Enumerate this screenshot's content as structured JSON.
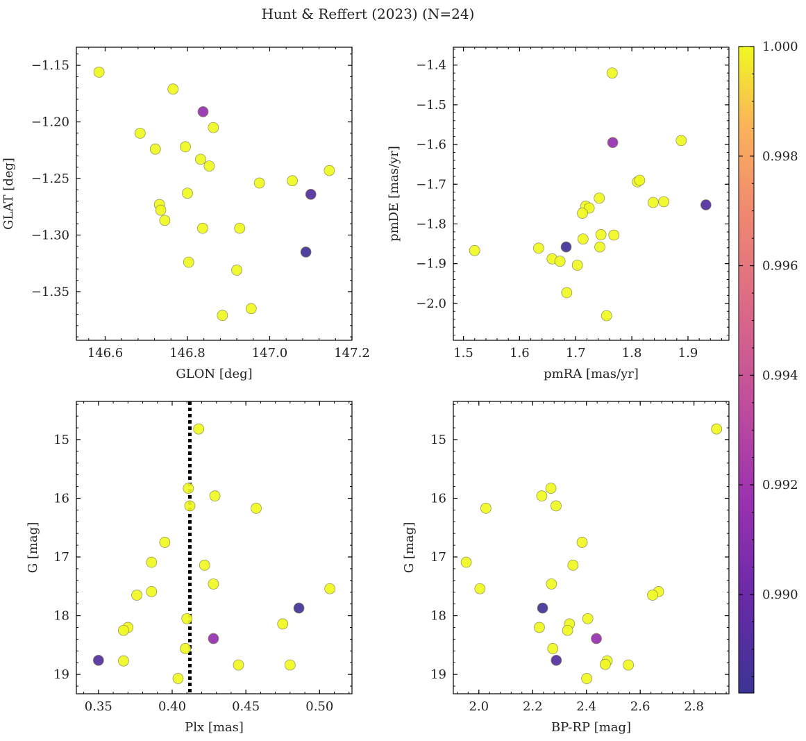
{
  "figure": {
    "title": "Hunt & Reffert (2023) (N=24)"
  },
  "colorbar": {
    "min": 0.9882,
    "max": 1.0,
    "ticks": [
      "0.990",
      "0.992",
      "0.994",
      "0.996",
      "0.998",
      "1.000"
    ],
    "tick_values": [
      0.99,
      0.992,
      0.994,
      0.996,
      0.998,
      1.0
    ],
    "colormap": "plasma"
  },
  "colors": {
    "member_high": "#f0f921",
    "member_mid": "#8c2bb4",
    "member_low": "#3b3494"
  },
  "chart_data": [
    {
      "type": "scatter",
      "xlabel": "GLON [deg]",
      "ylabel": "GLAT [deg]",
      "xlim": [
        146.53,
        147.2
      ],
      "ylim": [
        -1.393,
        -1.134
      ],
      "y_inverted": false,
      "xticks": [
        146.6,
        146.8,
        147.0,
        147.2
      ],
      "xtick_labels": [
        "146.6",
        "146.8",
        "147.0",
        "147.2"
      ],
      "yticks": [
        -1.15,
        -1.2,
        -1.25,
        -1.3,
        -1.35
      ],
      "ytick_labels": [
        "−1.15",
        "−1.20",
        "−1.25",
        "−1.30",
        "−1.35"
      ],
      "points": [
        {
          "x": 146.585,
          "y": -1.156,
          "c": 1.0
        },
        {
          "x": 146.765,
          "y": -1.171,
          "c": 1.0
        },
        {
          "x": 146.838,
          "y": -1.191,
          "c": 0.9915
        },
        {
          "x": 146.685,
          "y": -1.21,
          "c": 1.0
        },
        {
          "x": 146.863,
          "y": -1.205,
          "c": 1.0
        },
        {
          "x": 146.722,
          "y": -1.224,
          "c": 1.0
        },
        {
          "x": 146.795,
          "y": -1.222,
          "c": 1.0
        },
        {
          "x": 146.832,
          "y": -1.233,
          "c": 1.0
        },
        {
          "x": 146.853,
          "y": -1.239,
          "c": 1.0
        },
        {
          "x": 147.145,
          "y": -1.243,
          "c": 1.0
        },
        {
          "x": 146.975,
          "y": -1.254,
          "c": 1.0
        },
        {
          "x": 147.055,
          "y": -1.252,
          "c": 1.0
        },
        {
          "x": 146.8,
          "y": -1.263,
          "c": 1.0
        },
        {
          "x": 147.1,
          "y": -1.264,
          "c": 0.989
        },
        {
          "x": 146.732,
          "y": -1.273,
          "c": 1.0
        },
        {
          "x": 146.735,
          "y": -1.278,
          "c": 1.0
        },
        {
          "x": 146.745,
          "y": -1.287,
          "c": 1.0
        },
        {
          "x": 146.837,
          "y": -1.294,
          "c": 1.0
        },
        {
          "x": 146.927,
          "y": -1.294,
          "c": 1.0
        },
        {
          "x": 147.088,
          "y": -1.315,
          "c": 0.9885
        },
        {
          "x": 146.803,
          "y": -1.324,
          "c": 1.0
        },
        {
          "x": 146.92,
          "y": -1.331,
          "c": 1.0
        },
        {
          "x": 146.955,
          "y": -1.365,
          "c": 1.0
        },
        {
          "x": 146.885,
          "y": -1.371,
          "c": 1.0
        }
      ]
    },
    {
      "type": "scatter",
      "xlabel": "pmRA [mas/yr]",
      "ylabel": "pmDE [mas/yr]",
      "xlim": [
        1.482,
        1.973
      ],
      "ylim": [
        -2.093,
        -1.355
      ],
      "y_inverted": false,
      "xticks": [
        1.5,
        1.6,
        1.7,
        1.8,
        1.9
      ],
      "xtick_labels": [
        "1.5",
        "1.6",
        "1.7",
        "1.8",
        "1.9"
      ],
      "yticks": [
        -1.4,
        -1.5,
        -1.6,
        -1.7,
        -1.8,
        -1.9,
        -2.0
      ],
      "ytick_labels": [
        "−1.4",
        "−1.5",
        "−1.6",
        "−1.7",
        "−1.8",
        "−1.9",
        "−2.0"
      ],
      "points": [
        {
          "x": 1.765,
          "y": -1.42,
          "c": 1.0
        },
        {
          "x": 1.766,
          "y": -1.595,
          "c": 0.9915
        },
        {
          "x": 1.888,
          "y": -1.59,
          "c": 1.0
        },
        {
          "x": 1.81,
          "y": -1.694,
          "c": 1.0
        },
        {
          "x": 1.814,
          "y": -1.69,
          "c": 1.0
        },
        {
          "x": 1.742,
          "y": -1.735,
          "c": 1.0
        },
        {
          "x": 1.838,
          "y": -1.746,
          "c": 1.0
        },
        {
          "x": 1.857,
          "y": -1.744,
          "c": 1.0
        },
        {
          "x": 1.932,
          "y": -1.752,
          "c": 0.989
        },
        {
          "x": 1.718,
          "y": -1.755,
          "c": 1.0
        },
        {
          "x": 1.724,
          "y": -1.76,
          "c": 1.0
        },
        {
          "x": 1.712,
          "y": -1.773,
          "c": 1.0
        },
        {
          "x": 1.745,
          "y": -1.827,
          "c": 1.0
        },
        {
          "x": 1.768,
          "y": -1.828,
          "c": 1.0
        },
        {
          "x": 1.713,
          "y": -1.838,
          "c": 1.0
        },
        {
          "x": 1.743,
          "y": -1.858,
          "c": 1.0
        },
        {
          "x": 1.683,
          "y": -1.858,
          "c": 0.9885
        },
        {
          "x": 1.634,
          "y": -1.861,
          "c": 1.0
        },
        {
          "x": 1.52,
          "y": -1.867,
          "c": 1.0
        },
        {
          "x": 1.658,
          "y": -1.888,
          "c": 1.0
        },
        {
          "x": 1.672,
          "y": -1.894,
          "c": 1.0
        },
        {
          "x": 1.703,
          "y": -1.904,
          "c": 1.0
        },
        {
          "x": 1.684,
          "y": -1.973,
          "c": 1.0
        },
        {
          "x": 1.755,
          "y": -2.031,
          "c": 1.0
        }
      ]
    },
    {
      "type": "scatter",
      "xlabel": "Plx [mas]",
      "ylabel": "G [mag]",
      "xlim": [
        0.335,
        0.522
      ],
      "ylim": [
        19.33,
        14.35
      ],
      "y_inverted": true,
      "xticks": [
        0.35,
        0.4,
        0.45,
        0.5
      ],
      "xtick_labels": [
        "0.35",
        "0.40",
        "0.45",
        "0.50"
      ],
      "yticks": [
        15,
        16,
        17,
        18,
        19
      ],
      "ytick_labels": [
        "15",
        "16",
        "17",
        "18",
        "19"
      ],
      "vline": {
        "x": 0.412,
        "style": "dotted",
        "color": "#000000"
      },
      "points": [
        {
          "x": 0.418,
          "y": 14.82,
          "c": 1.0
        },
        {
          "x": 0.411,
          "y": 15.83,
          "c": 1.0
        },
        {
          "x": 0.429,
          "y": 15.96,
          "c": 1.0
        },
        {
          "x": 0.412,
          "y": 16.13,
          "c": 1.0
        },
        {
          "x": 0.457,
          "y": 16.17,
          "c": 1.0
        },
        {
          "x": 0.395,
          "y": 16.75,
          "c": 1.0
        },
        {
          "x": 0.386,
          "y": 17.09,
          "c": 1.0
        },
        {
          "x": 0.422,
          "y": 17.14,
          "c": 1.0
        },
        {
          "x": 0.428,
          "y": 17.46,
          "c": 1.0
        },
        {
          "x": 0.507,
          "y": 17.54,
          "c": 1.0
        },
        {
          "x": 0.386,
          "y": 17.59,
          "c": 1.0
        },
        {
          "x": 0.376,
          "y": 17.65,
          "c": 1.0
        },
        {
          "x": 0.486,
          "y": 17.87,
          "c": 0.9885
        },
        {
          "x": 0.41,
          "y": 18.05,
          "c": 1.0
        },
        {
          "x": 0.475,
          "y": 18.14,
          "c": 1.0
        },
        {
          "x": 0.37,
          "y": 18.2,
          "c": 1.0
        },
        {
          "x": 0.367,
          "y": 18.25,
          "c": 1.0
        },
        {
          "x": 0.428,
          "y": 18.39,
          "c": 0.9915
        },
        {
          "x": 0.409,
          "y": 18.56,
          "c": 1.0
        },
        {
          "x": 0.35,
          "y": 18.76,
          "c": 0.989
        },
        {
          "x": 0.367,
          "y": 18.77,
          "c": 1.0
        },
        {
          "x": 0.445,
          "y": 18.84,
          "c": 1.0
        },
        {
          "x": 0.48,
          "y": 18.84,
          "c": 1.0
        },
        {
          "x": 0.404,
          "y": 19.07,
          "c": 1.0
        }
      ]
    },
    {
      "type": "scatter",
      "xlabel": "BP-RP [mag]",
      "ylabel": "G [mag]",
      "xlim": [
        1.905,
        2.93
      ],
      "ylim": [
        19.33,
        14.35
      ],
      "y_inverted": true,
      "xticks": [
        2.0,
        2.2,
        2.4,
        2.6,
        2.8
      ],
      "xtick_labels": [
        "2.0",
        "2.2",
        "2.4",
        "2.6",
        "2.8"
      ],
      "yticks": [
        15,
        16,
        17,
        18,
        19
      ],
      "ytick_labels": [
        "15",
        "16",
        "17",
        "18",
        "19"
      ],
      "points": [
        {
          "x": 2.884,
          "y": 14.82,
          "c": 1.0
        },
        {
          "x": 2.268,
          "y": 15.83,
          "c": 1.0
        },
        {
          "x": 2.234,
          "y": 15.96,
          "c": 1.0
        },
        {
          "x": 2.287,
          "y": 16.13,
          "c": 1.0
        },
        {
          "x": 2.026,
          "y": 16.17,
          "c": 1.0
        },
        {
          "x": 2.384,
          "y": 16.75,
          "c": 1.0
        },
        {
          "x": 1.953,
          "y": 17.09,
          "c": 1.0
        },
        {
          "x": 2.35,
          "y": 17.14,
          "c": 1.0
        },
        {
          "x": 2.27,
          "y": 17.46,
          "c": 1.0
        },
        {
          "x": 2.004,
          "y": 17.54,
          "c": 1.0
        },
        {
          "x": 2.668,
          "y": 17.59,
          "c": 1.0
        },
        {
          "x": 2.646,
          "y": 17.65,
          "c": 1.0
        },
        {
          "x": 2.237,
          "y": 17.87,
          "c": 0.9885
        },
        {
          "x": 2.405,
          "y": 18.05,
          "c": 1.0
        },
        {
          "x": 2.337,
          "y": 18.14,
          "c": 1.0
        },
        {
          "x": 2.225,
          "y": 18.2,
          "c": 1.0
        },
        {
          "x": 2.33,
          "y": 18.25,
          "c": 1.0
        },
        {
          "x": 2.437,
          "y": 18.39,
          "c": 0.9915
        },
        {
          "x": 2.275,
          "y": 18.56,
          "c": 1.0
        },
        {
          "x": 2.288,
          "y": 18.76,
          "c": 0.989
        },
        {
          "x": 2.477,
          "y": 18.77,
          "c": 1.0
        },
        {
          "x": 2.47,
          "y": 18.83,
          "c": 1.0
        },
        {
          "x": 2.556,
          "y": 18.84,
          "c": 1.0
        },
        {
          "x": 2.401,
          "y": 19.07,
          "c": 1.0
        }
      ]
    }
  ]
}
